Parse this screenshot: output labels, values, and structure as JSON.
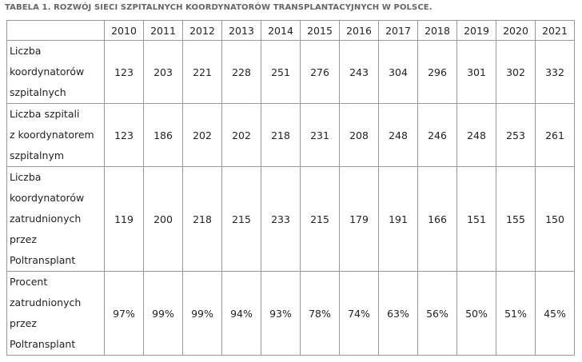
{
  "title": "TABELA 1. ROZWÓJ SIECI SZPITALNYCH KOORDYNATORÓW TRANSPLANTACYJNYCH W POLSCE.",
  "table": {
    "header": [
      "2010",
      "2011",
      "2012",
      "2013",
      "2014",
      "2015",
      "2016",
      "2017",
      "2018",
      "2019",
      "2020",
      "2021"
    ],
    "rows": [
      {
        "label": [
          "Liczba",
          "koordynatorów",
          "szpitalnych"
        ],
        "cells": [
          "123",
          "203",
          "221",
          "228",
          "251",
          "276",
          "243",
          "304",
          "296",
          "301",
          "302",
          "332"
        ]
      },
      {
        "label": [
          "Liczba szpitali",
          "z koordynatorem",
          "szpitalnym"
        ],
        "cells": [
          "123",
          "186",
          "202",
          "202",
          "218",
          "231",
          "208",
          "248",
          "246",
          "248",
          "253",
          "261"
        ]
      },
      {
        "label": [
          "Liczba",
          "koordynatorów",
          "zatrudnionych",
          "przez",
          "Poltransplant"
        ],
        "cells": [
          "119",
          "200",
          "218",
          "215",
          "233",
          "215",
          "179",
          "191",
          "166",
          "151",
          "155",
          "150"
        ]
      },
      {
        "label": [
          "Procent",
          "zatrudnionych",
          "przez",
          "Poltransplant"
        ],
        "cells": [
          "97%",
          "99%",
          "99%",
          "94%",
          "93%",
          "78%",
          "74%",
          "63%",
          "56%",
          "50%",
          "51%",
          "45%"
        ]
      }
    ]
  }
}
